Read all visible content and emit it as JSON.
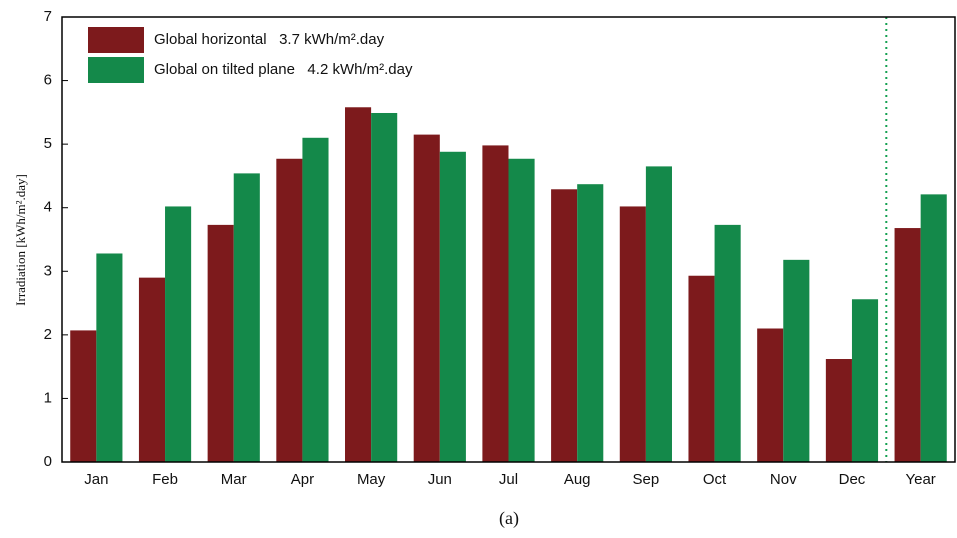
{
  "chart_data": {
    "type": "bar",
    "y_label": "Irradiation [kWh/m².day]",
    "categories": [
      "Jan",
      "Feb",
      "Mar",
      "Apr",
      "May",
      "Jun",
      "Jul",
      "Aug",
      "Sep",
      "Oct",
      "Nov",
      "Dec",
      "Year"
    ],
    "series": [
      {
        "name": "Global horizontal   3.7 kWh/m².day",
        "color": "#7d1a1c",
        "values": [
          2.07,
          2.9,
          3.73,
          4.77,
          5.58,
          5.15,
          4.98,
          4.29,
          4.02,
          2.93,
          2.1,
          1.62,
          3.68
        ]
      },
      {
        "name": "Global on tilted plane   4.2 kWh/m².day",
        "color": "#14894a",
        "values": [
          3.28,
          4.02,
          4.54,
          5.1,
          5.49,
          4.88,
          4.77,
          4.37,
          4.65,
          3.73,
          3.18,
          2.56,
          4.21
        ]
      }
    ],
    "ylim": [
      0,
      7
    ],
    "yticks": [
      0,
      1,
      2,
      3,
      4,
      5,
      6,
      7
    ],
    "legend": "upper left"
  },
  "caption": "(a)"
}
